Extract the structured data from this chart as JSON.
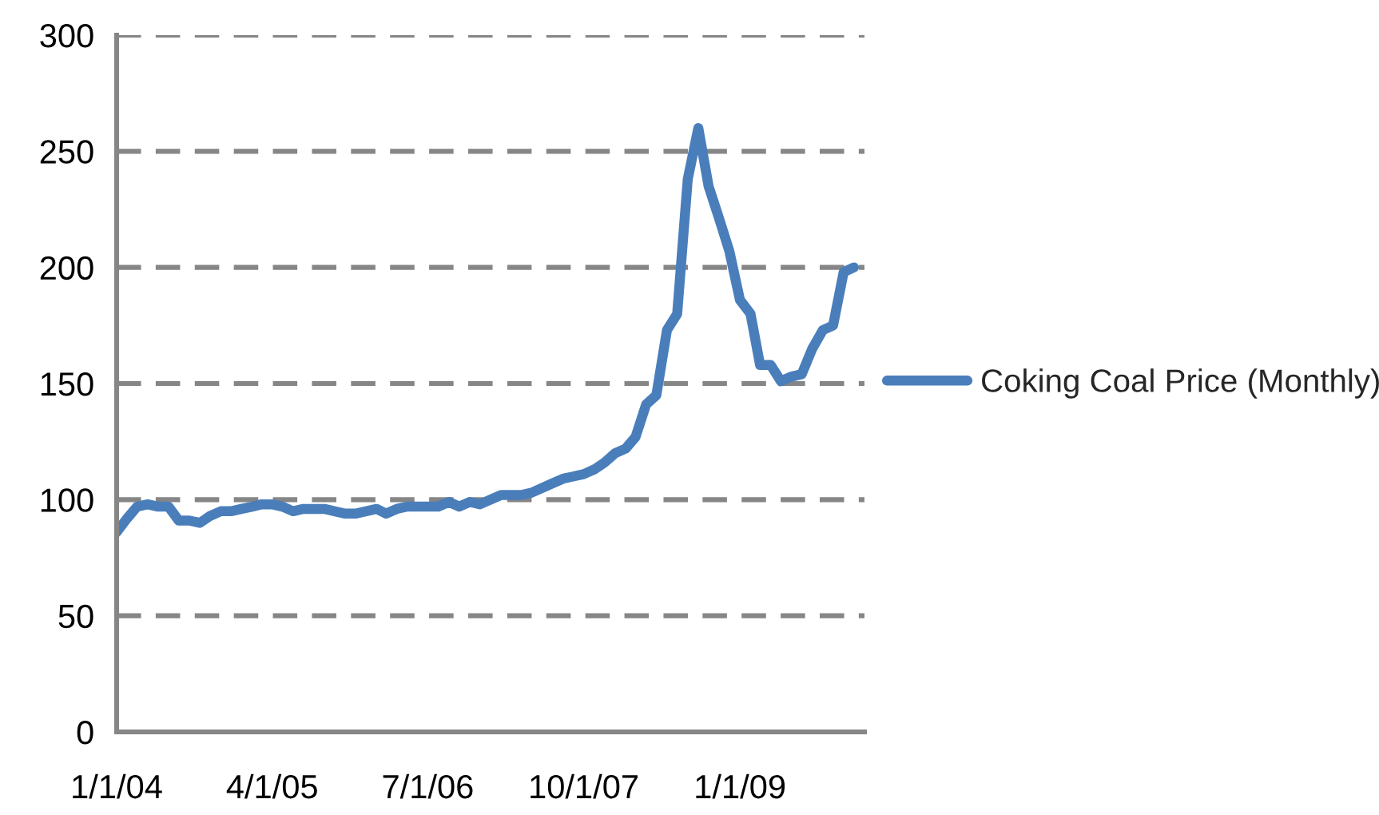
{
  "chart_data": {
    "type": "line",
    "x": [
      "2004-01",
      "2004-02",
      "2004-03",
      "2004-04",
      "2004-05",
      "2004-06",
      "2004-07",
      "2004-08",
      "2004-09",
      "2004-10",
      "2004-11",
      "2004-12",
      "2005-01",
      "2005-02",
      "2005-03",
      "2005-04",
      "2005-05",
      "2005-06",
      "2005-07",
      "2005-08",
      "2005-09",
      "2005-10",
      "2005-11",
      "2005-12",
      "2006-01",
      "2006-02",
      "2006-03",
      "2006-04",
      "2006-05",
      "2006-06",
      "2006-07",
      "2006-08",
      "2006-09",
      "2006-10",
      "2006-11",
      "2006-12",
      "2007-01",
      "2007-02",
      "2007-03",
      "2007-04",
      "2007-05",
      "2007-06",
      "2007-07",
      "2007-08",
      "2007-09",
      "2007-10",
      "2007-11",
      "2007-12",
      "2008-01",
      "2008-02",
      "2008-03",
      "2008-04",
      "2008-05",
      "2008-06",
      "2008-07",
      "2008-08",
      "2008-09",
      "2008-10",
      "2008-11",
      "2008-12",
      "2009-01",
      "2009-02",
      "2009-03",
      "2009-04",
      "2009-05",
      "2009-06",
      "2009-07",
      "2009-08",
      "2009-09",
      "2009-10",
      "2009-11",
      "2009-12"
    ],
    "series": [
      {
        "name": "Coking Coal Price (Monthly)",
        "color": "#4a7ebb",
        "values": [
          86,
          92,
          97,
          98,
          97,
          97,
          91,
          91,
          90,
          93,
          95,
          95,
          96,
          97,
          98,
          98,
          97,
          95,
          96,
          96,
          96,
          95,
          94,
          94,
          95,
          96,
          94,
          96,
          97,
          97,
          97,
          97,
          99,
          97,
          99,
          98,
          100,
          102,
          102,
          102,
          103,
          105,
          107,
          109,
          110,
          111,
          113,
          116,
          120,
          122,
          127,
          141,
          145,
          173,
          180,
          238,
          260,
          235,
          221,
          207,
          186,
          180,
          158,
          158,
          151,
          153,
          154,
          165,
          173,
          175,
          198,
          200
        ]
      }
    ],
    "xlim": [
      "2004-01-01",
      "2010-01-01"
    ],
    "xticks": [
      {
        "value": "2004-01-01",
        "label": "1/1/04"
      },
      {
        "value": "2005-04-01",
        "label": "4/1/05"
      },
      {
        "value": "2006-07-01",
        "label": "7/1/06"
      },
      {
        "value": "2007-10-01",
        "label": "10/1/07"
      },
      {
        "value": "2009-01-01",
        "label": "1/1/09"
      }
    ],
    "ylim": [
      0,
      300
    ],
    "yticks": [
      0,
      50,
      100,
      150,
      200,
      250,
      300
    ],
    "grid": "y",
    "legend": "right",
    "marker": "none",
    "line_style": "solid"
  }
}
